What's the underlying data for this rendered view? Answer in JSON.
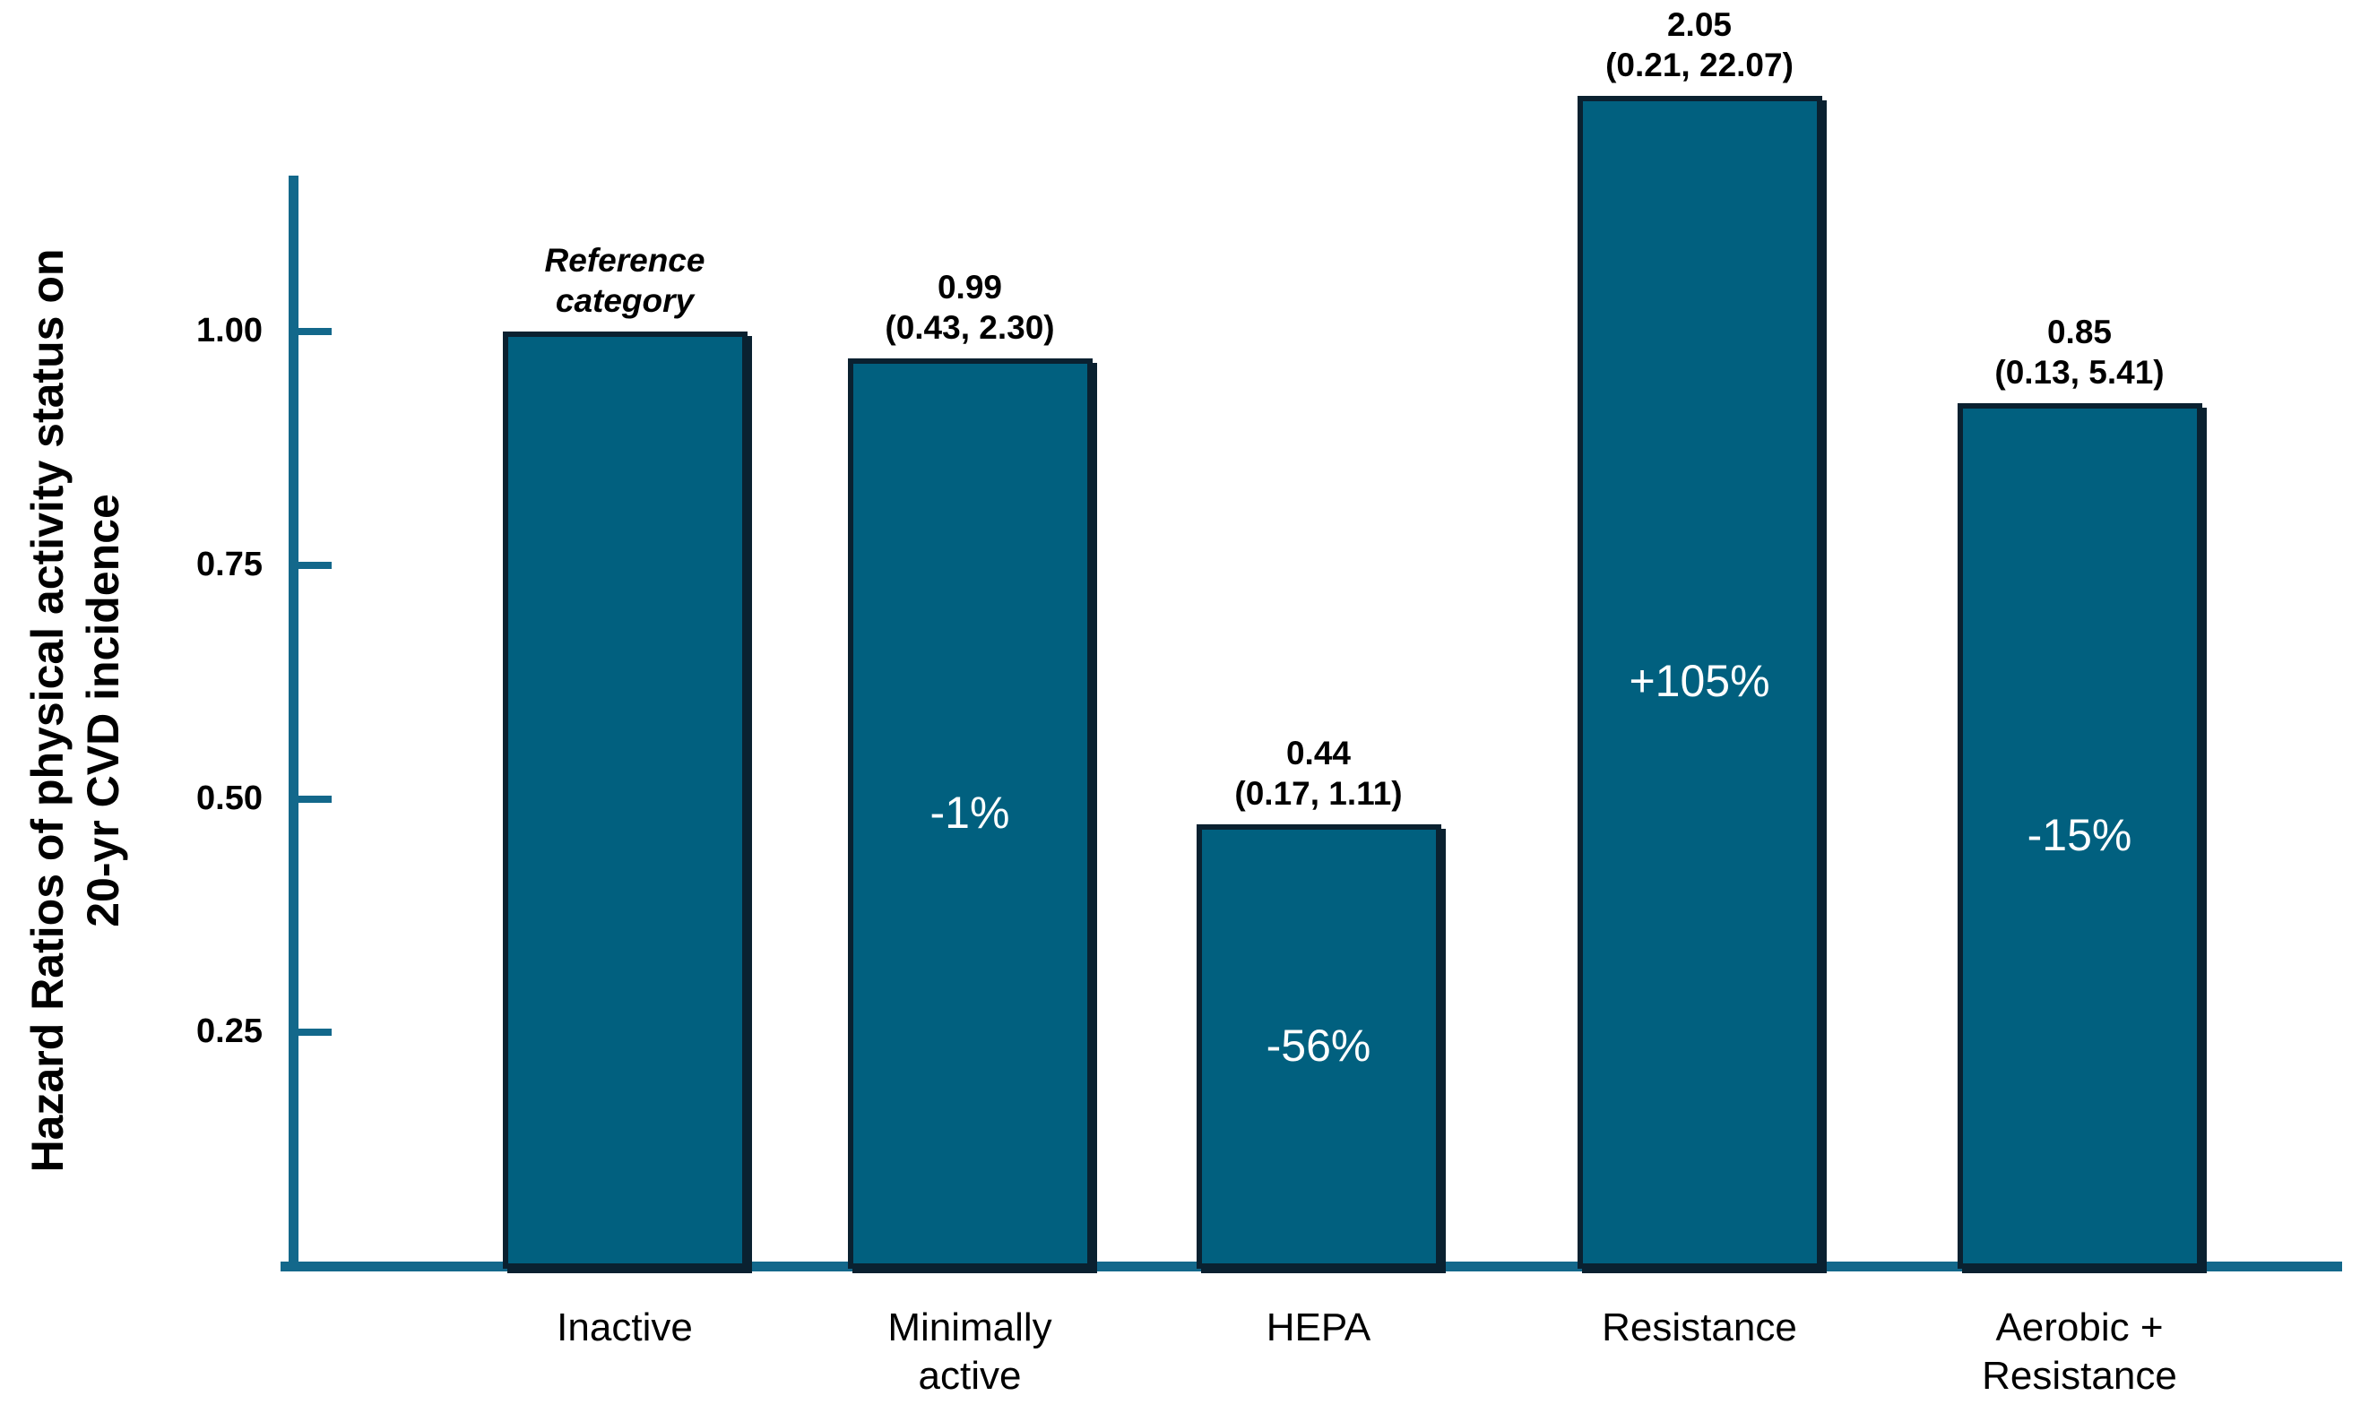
{
  "figure": {
    "background": "#ffffff",
    "colors": {
      "bar_fill": "#01607f",
      "bar_outline": "#0a2130",
      "axis": "#13688b",
      "annotation_text": "#000000",
      "in_bar_text": "#ffffff"
    }
  },
  "chart_data": {
    "type": "bar",
    "title": "",
    "xlabel": "",
    "ylabel": "Hazard Ratios of physical activity status on 20-yr CVD incidence",
    "ylabel_lines": [
      "Hazard Ratios of physical activity status on",
      "20-yr CVD incidence"
    ],
    "categories": [
      "Inactive",
      "Minimally active",
      "HEPA",
      "Resistance",
      "Aerobic + Resistance"
    ],
    "values": [
      1.0,
      0.99,
      0.44,
      2.05,
      0.85
    ],
    "ylim": [
      0,
      1.25
    ],
    "grid": false,
    "legend": "none",
    "y_ticks": [
      {
        "value": 1.0,
        "label": "1.00"
      },
      {
        "value": 0.75,
        "label": "0.75"
      },
      {
        "value": 0.5,
        "label": "0.50"
      },
      {
        "value": 0.25,
        "label": "0.25"
      }
    ],
    "bars": [
      {
        "category_lines": [
          "Inactive"
        ],
        "hazard_ratio": 1.0,
        "ci_text": "",
        "annotation_lines": [
          "Reference",
          "category"
        ],
        "annotation_italic": true,
        "pct_change_label": "",
        "drawn_height_frac": 1.0
      },
      {
        "category_lines": [
          "Minimally",
          "active"
        ],
        "hazard_ratio": 0.99,
        "ci_text": "(0.43, 2.30)",
        "annotation_lines": [
          "0.99",
          "(0.43, 2.30)"
        ],
        "annotation_italic": false,
        "pct_change_label": "-1%",
        "drawn_height_frac": 0.971
      },
      {
        "category_lines": [
          "HEPA"
        ],
        "hazard_ratio": 0.44,
        "ci_text": "(0.17, 1.11)",
        "annotation_lines": [
          "0.44",
          "(0.17, 1.11)"
        ],
        "annotation_italic": false,
        "pct_change_label": "-56%",
        "drawn_height_frac": 0.473
      },
      {
        "category_lines": [
          "Resistance"
        ],
        "hazard_ratio": 2.05,
        "ci_text": "(0.21, 22.07)",
        "annotation_lines": [
          "2.05",
          "(0.21, 22.07)"
        ],
        "annotation_italic": false,
        "pct_change_label": "+105%",
        "drawn_height_frac": 1.252
      },
      {
        "category_lines": [
          "Aerobic +",
          "Resistance"
        ],
        "hazard_ratio": 0.85,
        "ci_text": "(0.13, 5.41)",
        "annotation_lines": [
          "0.85",
          "(0.13, 5.41)"
        ],
        "annotation_italic": false,
        "pct_change_label": "-15%",
        "drawn_height_frac": 0.923
      }
    ]
  }
}
